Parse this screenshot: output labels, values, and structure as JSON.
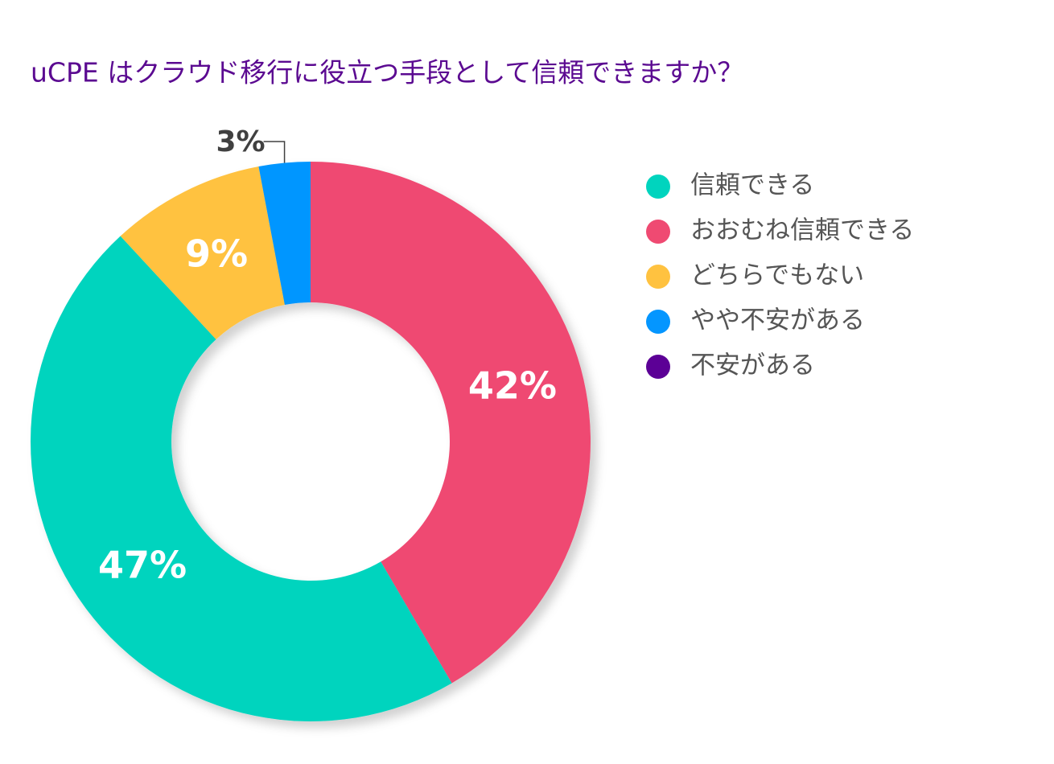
{
  "chart_data": {
    "type": "donut",
    "title": "uCPE はクラウド移行に役立つ手段として信頼できますか？",
    "categories": [
      "信頼できる",
      "おおむね信頼できる",
      "どちらでもない",
      "やや不安がある",
      "不安がある"
    ],
    "values": [
      47,
      42,
      9,
      3,
      0
    ],
    "value_labels": [
      "47%",
      "42%",
      "9%",
      "3%",
      null
    ],
    "colors": [
      "#00d4be",
      "#ef4a72",
      "#ffc240",
      "#0496ff",
      "#5c0096"
    ],
    "legend": "right"
  }
}
